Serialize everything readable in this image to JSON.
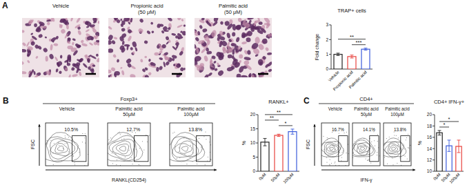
{
  "panels": [
    {
      "letter": "A",
      "images": [
        {
          "label": [
            "Vehicle"
          ]
        },
        {
          "label": [
            "Propionic acid",
            "(50 μM)"
          ]
        },
        {
          "label": [
            "Palmitic acid",
            "(50 μM)"
          ]
        }
      ]
    },
    {
      "letter": "B",
      "header": "Foxp3+",
      "y_label": "FSC",
      "x_label": "RANKL(CD254)",
      "plots": [
        {
          "label": [
            "Vehicle"
          ],
          "gate": "10.5%"
        },
        {
          "label": [
            "Palmitic acid",
            "50μM"
          ],
          "gate": "12.7%"
        },
        {
          "label": [
            "Palmitic acid",
            "100μM"
          ],
          "gate": "13.8%"
        }
      ]
    },
    {
      "letter": "C",
      "header": "CD4+",
      "y_label": "FSC",
      "x_label": "IFN-γ",
      "plots": [
        {
          "label": [
            "Vehicle"
          ],
          "gate": "16.7%"
        },
        {
          "label": [
            "Palmitic acid",
            "50μM"
          ],
          "gate": "14.1%"
        },
        {
          "label": [
            "Palmitic acid",
            "100μM"
          ],
          "gate": "13.8%"
        }
      ]
    }
  ],
  "chart_data": [
    {
      "type": "bar",
      "title": "TRAP+ cells",
      "y_label": "Fold change",
      "categories": [
        "Vehicle",
        "Propionic acid",
        "Palmitic acid"
      ],
      "values": [
        1.0,
        0.85,
        1.35
      ],
      "errors": [
        0.08,
        0.1,
        0.07
      ],
      "colors": [
        "#222222",
        "#e8413c",
        "#3b5bdb"
      ],
      "ylim": [
        0,
        3
      ],
      "yticks": [
        0,
        1,
        2,
        3
      ],
      "annotations": [
        {
          "label": "***",
          "categories": [
            "Propionic acid",
            "Palmitic acid"
          ]
        },
        {
          "label": "**",
          "categories": [
            "Vehicle",
            "Palmitic acid"
          ]
        }
      ]
    },
    {
      "type": "bar",
      "title": "RANKL+",
      "y_label": "%",
      "categories": [
        "0μM",
        "50μM",
        "100μM"
      ],
      "values": [
        10.3,
        12.7,
        14.0
      ],
      "errors": [
        1.3,
        0.4,
        0.9
      ],
      "colors": [
        "#222222",
        "#e8413c",
        "#3b5bdb"
      ],
      "ylim": [
        0,
        20
      ],
      "yticks": [
        0,
        5,
        10,
        15,
        20
      ],
      "annotations": [
        {
          "label": "*",
          "categories": [
            "50μM",
            "100μM"
          ]
        },
        {
          "label": "**",
          "categories": [
            "0μM",
            "50μM"
          ]
        },
        {
          "label": "**",
          "categories": [
            "0μM",
            "100μM"
          ]
        }
      ]
    },
    {
      "type": "bar",
      "title": "CD4+ IFN-γ+",
      "y_label": "%",
      "categories": [
        "0μM",
        "50μM",
        "100μM"
      ],
      "values": [
        16.8,
        14.5,
        14.4
      ],
      "errors": [
        0.4,
        1.0,
        1.1
      ],
      "colors": [
        "#222222",
        "#3b5bdb",
        "#e8413c"
      ],
      "ylim": [
        10,
        20
      ],
      "yticks": [
        10,
        12,
        14,
        16,
        18,
        20
      ],
      "annotations": [
        {
          "label": "*",
          "categories": [
            "0μM",
            "50μM"
          ]
        },
        {
          "label": "*",
          "categories": [
            "0μM",
            "100μM"
          ]
        }
      ]
    }
  ]
}
